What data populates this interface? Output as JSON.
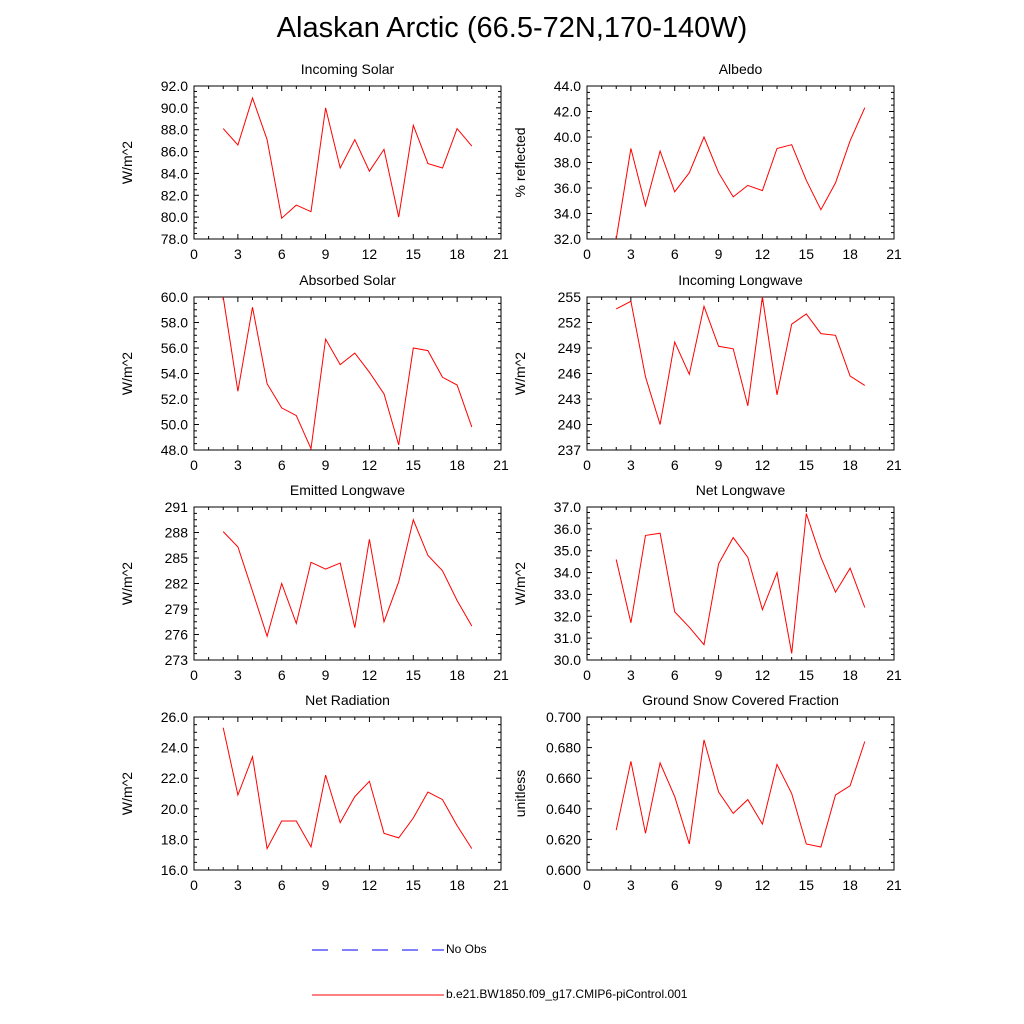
{
  "title": "Alaskan Arctic (66.5-72N,170-140W)",
  "legend": {
    "entries": [
      {
        "label": "No Obs",
        "color": "#0000ff",
        "style": "dashed"
      },
      {
        "label": "b.e21.BW1850.f09_g17.CMIP6-piControl.001",
        "color": "#ff0000",
        "style": "solid"
      }
    ]
  },
  "chart_data": [
    {
      "type": "line",
      "title": "Incoming Solar",
      "ylabel": "W/m^2",
      "xlim": [
        0,
        21
      ],
      "ylim": [
        78,
        92
      ],
      "xticks": [
        0,
        3,
        6,
        9,
        12,
        15,
        18,
        21
      ],
      "yticks": [
        "78.0",
        "80.0",
        "82.0",
        "84.0",
        "86.0",
        "88.0",
        "90.0",
        "92.0"
      ],
      "series": [
        {
          "name": "b.e21.BW1850.f09_g17.CMIP6-piControl.001",
          "color": "#ff0000",
          "x": [
            2,
            3,
            4,
            5,
            6,
            7,
            8,
            9,
            10,
            11,
            12,
            13,
            14,
            15,
            16,
            17,
            18,
            19
          ],
          "y": [
            88.1,
            86.6,
            90.9,
            87.1,
            79.9,
            81.1,
            80.5,
            90.0,
            84.5,
            87.1,
            84.2,
            86.2,
            80.0,
            88.4,
            84.9,
            84.5,
            88.1,
            86.5
          ]
        }
      ]
    },
    {
      "type": "line",
      "title": "Albedo",
      "ylabel": "% reflected",
      "xlim": [
        0,
        21
      ],
      "ylim": [
        32,
        44
      ],
      "xticks": [
        0,
        3,
        6,
        9,
        12,
        15,
        18,
        21
      ],
      "yticks": [
        "32.0",
        "34.0",
        "36.0",
        "38.0",
        "40.0",
        "42.0",
        "44.0"
      ],
      "series": [
        {
          "name": "b.e21.BW1850.f09_g17.CMIP6-piControl.001",
          "color": "#ff0000",
          "x": [
            2,
            3,
            4,
            5,
            6,
            7,
            8,
            9,
            10,
            11,
            12,
            13,
            14,
            15,
            16,
            17,
            18,
            19
          ],
          "y": [
            32.0,
            39.1,
            34.6,
            38.9,
            35.7,
            37.2,
            40.0,
            37.2,
            35.3,
            36.2,
            35.8,
            39.1,
            39.4,
            36.6,
            34.3,
            36.4,
            39.7,
            42.3
          ]
        }
      ]
    },
    {
      "type": "line",
      "title": "Absorbed Solar",
      "ylabel": "W/m^2",
      "xlim": [
        0,
        21
      ],
      "ylim": [
        48,
        60
      ],
      "xticks": [
        0,
        3,
        6,
        9,
        12,
        15,
        18,
        21
      ],
      "yticks": [
        "48.0",
        "50.0",
        "52.0",
        "54.0",
        "56.0",
        "58.0",
        "60.0"
      ],
      "series": [
        {
          "name": "b.e21.BW1850.f09_g17.CMIP6-piControl.001",
          "color": "#ff0000",
          "x": [
            2,
            3,
            4,
            5,
            6,
            7,
            8,
            9,
            10,
            11,
            12,
            13,
            14,
            15,
            16,
            17,
            18,
            19
          ],
          "y": [
            60.0,
            52.6,
            59.2,
            53.2,
            51.3,
            50.7,
            48.1,
            56.7,
            54.7,
            55.6,
            54.1,
            52.4,
            48.4,
            56.0,
            55.8,
            53.7,
            53.1,
            49.8
          ]
        }
      ]
    },
    {
      "type": "line",
      "title": "Incoming Longwave",
      "ylabel": "W/m^2",
      "xlim": [
        0,
        21
      ],
      "ylim": [
        237,
        255
      ],
      "xticks": [
        0,
        3,
        6,
        9,
        12,
        15,
        18,
        21
      ],
      "yticks": [
        "237",
        "240",
        "243",
        "246",
        "249",
        "252",
        "255"
      ],
      "series": [
        {
          "name": "b.e21.BW1850.f09_g17.CMIP6-piControl.001",
          "color": "#ff0000",
          "x": [
            2,
            3,
            4,
            5,
            6,
            7,
            8,
            9,
            10,
            11,
            12,
            13,
            14,
            15,
            16,
            17,
            18,
            19
          ],
          "y": [
            253.6,
            254.5,
            245.6,
            240.0,
            249.7,
            245.9,
            253.9,
            249.2,
            248.9,
            242.2,
            255.0,
            243.5,
            251.8,
            253.0,
            250.7,
            250.5,
            245.7,
            244.6
          ]
        }
      ]
    },
    {
      "type": "line",
      "title": "Emitted Longwave",
      "ylabel": "W/m^2",
      "xlim": [
        0,
        21
      ],
      "ylim": [
        273,
        291
      ],
      "xticks": [
        0,
        3,
        6,
        9,
        12,
        15,
        18,
        21
      ],
      "yticks": [
        "273",
        "276",
        "279",
        "282",
        "285",
        "288",
        "291"
      ],
      "series": [
        {
          "name": "b.e21.BW1850.f09_g17.CMIP6-piControl.001",
          "color": "#ff0000",
          "x": [
            2,
            3,
            4,
            5,
            6,
            7,
            8,
            9,
            10,
            11,
            12,
            13,
            14,
            15,
            16,
            17,
            18,
            19
          ],
          "y": [
            288.1,
            286.3,
            281.1,
            275.8,
            282.0,
            277.3,
            284.5,
            283.7,
            284.4,
            276.8,
            287.2,
            277.5,
            282.2,
            289.5,
            285.3,
            283.5,
            280.0,
            277.0
          ]
        }
      ]
    },
    {
      "type": "line",
      "title": "Net Longwave",
      "ylabel": "W/m^2",
      "xlim": [
        0,
        21
      ],
      "ylim": [
        30,
        37
      ],
      "xticks": [
        0,
        3,
        6,
        9,
        12,
        15,
        18,
        21
      ],
      "yticks": [
        "30.0",
        "31.0",
        "32.0",
        "33.0",
        "34.0",
        "35.0",
        "36.0",
        "37.0"
      ],
      "series": [
        {
          "name": "b.e21.BW1850.f09_g17.CMIP6-piControl.001",
          "color": "#ff0000",
          "x": [
            2,
            3,
            4,
            5,
            6,
            7,
            8,
            9,
            10,
            11,
            12,
            13,
            14,
            15,
            16,
            17,
            18,
            19
          ],
          "y": [
            34.6,
            31.7,
            35.7,
            35.8,
            32.2,
            31.5,
            30.7,
            34.4,
            35.6,
            34.7,
            32.3,
            34.0,
            30.3,
            36.7,
            34.7,
            33.1,
            34.2,
            32.4
          ]
        }
      ]
    },
    {
      "type": "line",
      "title": "Net Radiation",
      "ylabel": "W/m^2",
      "xlim": [
        0,
        21
      ],
      "ylim": [
        16,
        26
      ],
      "xticks": [
        0,
        3,
        6,
        9,
        12,
        15,
        18,
        21
      ],
      "yticks": [
        "16.0",
        "18.0",
        "20.0",
        "22.0",
        "24.0",
        "26.0"
      ],
      "series": [
        {
          "name": "b.e21.BW1850.f09_g17.CMIP6-piControl.001",
          "color": "#ff0000",
          "x": [
            2,
            3,
            4,
            5,
            6,
            7,
            8,
            9,
            10,
            11,
            12,
            13,
            14,
            15,
            16,
            17,
            18,
            19
          ],
          "y": [
            25.3,
            20.9,
            23.4,
            17.4,
            19.2,
            19.2,
            17.5,
            22.2,
            19.1,
            20.8,
            21.8,
            18.4,
            18.1,
            19.4,
            21.1,
            20.6,
            18.9,
            17.4
          ]
        }
      ]
    },
    {
      "type": "line",
      "title": "Ground Snow Covered Fraction",
      "ylabel": "unitless",
      "xlim": [
        0,
        21
      ],
      "ylim": [
        0.6,
        0.7
      ],
      "xticks": [
        0,
        3,
        6,
        9,
        12,
        15,
        18,
        21
      ],
      "yticks": [
        "0.600",
        "0.620",
        "0.640",
        "0.660",
        "0.680",
        "0.700"
      ],
      "series": [
        {
          "name": "b.e21.BW1850.f09_g17.CMIP6-piControl.001",
          "color": "#ff0000",
          "x": [
            2,
            3,
            4,
            5,
            6,
            7,
            8,
            9,
            10,
            11,
            12,
            13,
            14,
            15,
            16,
            17,
            18,
            19
          ],
          "y": [
            0.626,
            0.671,
            0.624,
            0.67,
            0.648,
            0.617,
            0.685,
            0.651,
            0.637,
            0.646,
            0.63,
            0.669,
            0.65,
            0.617,
            0.615,
            0.649,
            0.655,
            0.684
          ]
        }
      ]
    }
  ]
}
